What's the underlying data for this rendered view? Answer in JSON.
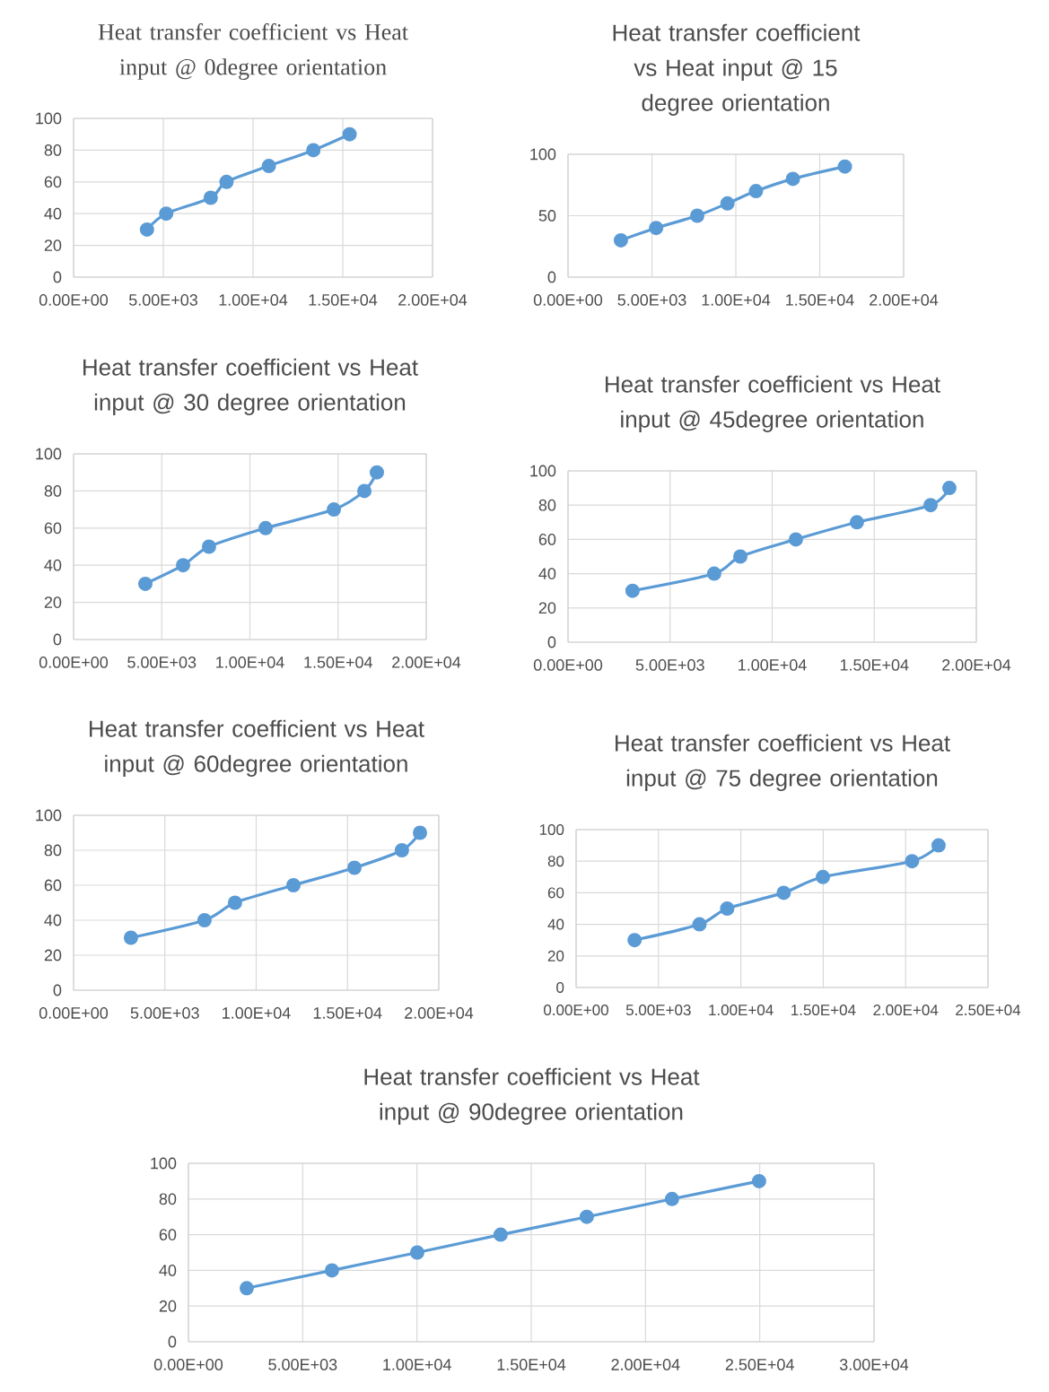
{
  "chart_data": [
    {
      "type": "line",
      "title": "Heat transfer coefficient vs Heat input @ 0degree orientation",
      "x": [
        4090,
        5160,
        7640,
        8520,
        10880,
        13360,
        15380
      ],
      "values": [
        30,
        40,
        50,
        60,
        70,
        80,
        90
      ],
      "color": "#5b9bd5",
      "marker": "circle",
      "grid": true,
      "xlim": [
        0,
        20000
      ],
      "ylim": [
        0,
        100
      ],
      "xticks": [
        {
          "value": 0,
          "label": "0.00E+00"
        },
        {
          "value": 5000,
          "label": "5.00E+03"
        },
        {
          "value": 10000,
          "label": "1.00E+04"
        },
        {
          "value": 15000,
          "label": "1.50E+04"
        },
        {
          "value": 20000,
          "label": "2.00E+04"
        }
      ],
      "yticks": [
        0,
        20,
        40,
        60,
        80,
        100
      ]
    },
    {
      "type": "line",
      "title": "Heat transfer coefficient vs Heat input @ 15 degree orientation",
      "x": [
        3150,
        5250,
        7700,
        9500,
        11200,
        13400,
        16500
      ],
      "values": [
        30,
        40,
        50,
        60,
        70,
        80,
        90
      ],
      "color": "#5b9bd5",
      "marker": "circle",
      "grid": true,
      "xlim": [
        0,
        20000
      ],
      "ylim": [
        0,
        100
      ],
      "xticks": [
        {
          "value": 0,
          "label": "0.00E+00"
        },
        {
          "value": 5000,
          "label": "5.00E+03"
        },
        {
          "value": 10000,
          "label": "1.00E+04"
        },
        {
          "value": 15000,
          "label": "1.50E+04"
        },
        {
          "value": 20000,
          "label": "2.00E+04"
        }
      ],
      "yticks": [
        0,
        50,
        100
      ]
    },
    {
      "type": "line",
      "title": "Heat transfer coefficient vs Heat input @ 30 degree orientation",
      "x": [
        4070,
        6210,
        7680,
        10890,
        14760,
        16490,
        17200
      ],
      "values": [
        30,
        40,
        50,
        60,
        70,
        80,
        90
      ],
      "color": "#5b9bd5",
      "marker": "circle",
      "grid": true,
      "xlim": [
        0,
        20000
      ],
      "ylim": [
        0,
        100
      ],
      "xticks": [
        {
          "value": 0,
          "label": "0.00E+00"
        },
        {
          "value": 5000,
          "label": "5.00E+03"
        },
        {
          "value": 10000,
          "label": "1.00E+04"
        },
        {
          "value": 15000,
          "label": "1.50E+04"
        },
        {
          "value": 20000,
          "label": "2.00E+04"
        }
      ],
      "yticks": [
        0,
        20,
        40,
        60,
        80,
        100
      ]
    },
    {
      "type": "line",
      "title": "Heat transfer coefficient vs Heat input @ 45degree orientation",
      "x": [
        3160,
        7160,
        8440,
        11160,
        14150,
        17760,
        18680
      ],
      "values": [
        30,
        40,
        50,
        60,
        70,
        80,
        90
      ],
      "color": "#5b9bd5",
      "marker": "circle",
      "grid": true,
      "xlim": [
        0,
        20000
      ],
      "ylim": [
        0,
        100
      ],
      "xticks": [
        {
          "value": 0,
          "label": "0.00E+00"
        },
        {
          "value": 5000,
          "label": "5.00E+03"
        },
        {
          "value": 10000,
          "label": "1.00E+04"
        },
        {
          "value": 15000,
          "label": "1.50E+04"
        },
        {
          "value": 20000,
          "label": "2.00E+04"
        }
      ],
      "yticks": [
        0,
        20,
        40,
        60,
        80,
        100
      ]
    },
    {
      "type": "line",
      "title": "Heat transfer coefficient vs Heat input @ 60degree orientation",
      "x": [
        3140,
        7170,
        8840,
        12040,
        15380,
        17980,
        18970
      ],
      "values": [
        30,
        40,
        50,
        60,
        70,
        80,
        90
      ],
      "color": "#5b9bd5",
      "marker": "circle",
      "grid": true,
      "xlim": [
        0,
        20000
      ],
      "ylim": [
        0,
        100
      ],
      "xticks": [
        {
          "value": 0,
          "label": "0.00E+00"
        },
        {
          "value": 5000,
          "label": "5.00E+03"
        },
        {
          "value": 10000,
          "label": "1.00E+04"
        },
        {
          "value": 15000,
          "label": "1.50E+04"
        },
        {
          "value": 20000,
          "label": "2.00E+04"
        }
      ],
      "yticks": [
        0,
        20,
        40,
        60,
        80,
        100
      ]
    },
    {
      "type": "line",
      "title": "Heat transfer coefficient vs Heat input @ 75 degree orientation",
      "x": [
        3550,
        7490,
        9170,
        12600,
        14980,
        20390,
        22000
      ],
      "values": [
        30,
        40,
        50,
        60,
        70,
        80,
        90
      ],
      "color": "#5b9bd5",
      "marker": "circle",
      "grid": true,
      "xlim": [
        0,
        25000
      ],
      "ylim": [
        0,
        100
      ],
      "xticks": [
        {
          "value": 0,
          "label": "0.00E+00"
        },
        {
          "value": 5000,
          "label": "5.00E+03"
        },
        {
          "value": 10000,
          "label": "1.00E+04"
        },
        {
          "value": 15000,
          "label": "1.50E+04"
        },
        {
          "value": 20000,
          "label": "2.00E+04"
        },
        {
          "value": 25000,
          "label": "2.50E+04"
        }
      ],
      "yticks": [
        0,
        20,
        40,
        60,
        80,
        100
      ]
    },
    {
      "type": "line",
      "title": "Heat transfer coefficient vs Heat input @ 90degree orientation",
      "x": [
        2550,
        6280,
        10010,
        13660,
        17430,
        21160,
        24970
      ],
      "values": [
        30,
        40,
        50,
        60,
        70,
        80,
        90
      ],
      "color": "#5b9bd5",
      "marker": "circle",
      "grid": true,
      "xlim": [
        0,
        30000
      ],
      "ylim": [
        0,
        100
      ],
      "xticks": [
        {
          "value": 0,
          "label": "0.00E+00"
        },
        {
          "value": 5000,
          "label": "5.00E+03"
        },
        {
          "value": 10000,
          "label": "1.00E+04"
        },
        {
          "value": 15000,
          "label": "1.50E+04"
        },
        {
          "value": 20000,
          "label": "2.00E+04"
        },
        {
          "value": 25000,
          "label": "2.50E+04"
        },
        {
          "value": 30000,
          "label": "3.00E+04"
        }
      ],
      "yticks": [
        0,
        20,
        40,
        60,
        80,
        100
      ]
    }
  ]
}
